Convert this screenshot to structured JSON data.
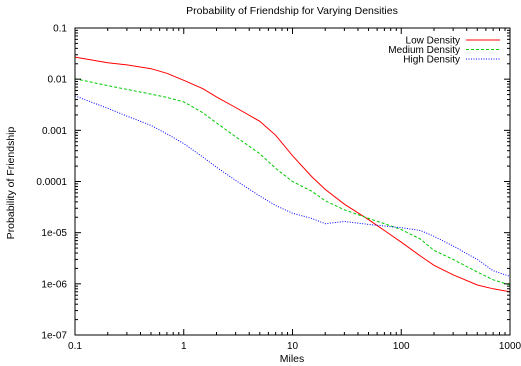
{
  "chart_data": {
    "type": "line",
    "title": "Probability of Friendship for Varying Densities",
    "xlabel": "Miles",
    "ylabel": "Probability of Friendship",
    "x_scale": "log",
    "y_scale": "log",
    "xlim": [
      0.1,
      1000
    ],
    "ylim": [
      1e-07,
      0.1
    ],
    "x_ticks": [
      0.1,
      1,
      10,
      100,
      1000
    ],
    "x_tick_labels": [
      "0.1",
      "1",
      "10",
      "100",
      "1000"
    ],
    "y_ticks": [
      1e-07,
      1e-06,
      1e-05,
      0.0001,
      0.001,
      0.01,
      0.1
    ],
    "y_tick_labels": [
      "1e-07",
      "1e-06",
      "1e-05",
      "0.0001",
      "0.001",
      "0.01",
      "0.1"
    ],
    "grid": false,
    "legend_position": "top-right",
    "series": [
      {
        "name": "Low Density",
        "color": "#ff0000",
        "dash": "solid",
        "x": [
          0.1,
          0.2,
          0.3,
          0.5,
          0.7,
          1,
          1.5,
          2,
          3,
          5,
          7,
          10,
          15,
          20,
          30,
          50,
          70,
          100,
          150,
          200,
          300,
          500,
          700,
          1000
        ],
        "y": [
          0.027,
          0.021,
          0.019,
          0.016,
          0.013,
          0.0095,
          0.0065,
          0.0045,
          0.0028,
          0.0015,
          0.0008,
          0.00032,
          0.000125,
          7e-05,
          3.6e-05,
          1.8e-05,
          1.1e-05,
          6.5e-06,
          3.5e-06,
          2.3e-06,
          1.5e-06,
          9.5e-07,
          8e-07,
          7e-07
        ]
      },
      {
        "name": "Medium Density",
        "color": "#00cc00",
        "dash": "dashed",
        "x": [
          0.1,
          0.2,
          0.3,
          0.5,
          0.7,
          1,
          1.5,
          2,
          3,
          5,
          7,
          10,
          15,
          20,
          30,
          50,
          70,
          100,
          150,
          200,
          300,
          500,
          700,
          1000
        ],
        "y": [
          0.0102,
          0.0075,
          0.0063,
          0.0051,
          0.0044,
          0.0036,
          0.0022,
          0.0014,
          0.00075,
          0.00035,
          0.00018,
          0.0001,
          6.5e-05,
          4.2e-05,
          2.8e-05,
          1.9e-05,
          1.5e-05,
          1.15e-05,
          7.5e-06,
          4.5e-06,
          3e-06,
          1.7e-06,
          1.2e-06,
          9.5e-07
        ]
      },
      {
        "name": "High Density",
        "color": "#0000ff",
        "dash": "dotted",
        "x": [
          0.1,
          0.2,
          0.3,
          0.5,
          0.7,
          1,
          1.5,
          2,
          3,
          5,
          7,
          10,
          15,
          20,
          30,
          50,
          70,
          100,
          150,
          200,
          300,
          500,
          700,
          1000
        ],
        "y": [
          0.0047,
          0.0027,
          0.0019,
          0.00125,
          0.00085,
          0.00055,
          0.0003,
          0.00019,
          0.000105,
          5.2e-05,
          3.4e-05,
          2.4e-05,
          1.9e-05,
          1.5e-05,
          1.65e-05,
          1.45e-05,
          1.35e-05,
          1.25e-05,
          1.1e-05,
          8.5e-06,
          5.5e-06,
          3e-06,
          1.8e-06,
          1.4e-06
        ]
      }
    ]
  }
}
